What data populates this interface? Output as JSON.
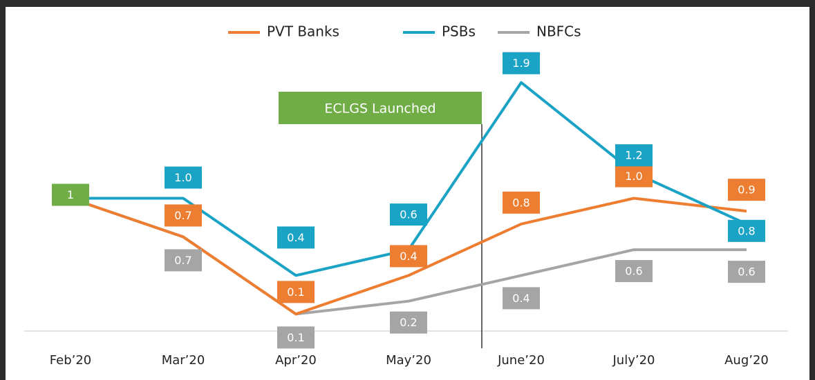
{
  "chart_data": {
    "type": "line",
    "categories": [
      "Feb’20",
      "Mar’20",
      "Apr’20",
      "May’20",
      "June’20",
      "July’20",
      "Aug’20"
    ],
    "series": [
      {
        "name": "PVT Banks",
        "color": "#ed7d31",
        "values": [
          1,
          0.7,
          0.1,
          0.4,
          0.8,
          1.0,
          0.9
        ],
        "value_labels": [
          "1",
          "0.7",
          "0.1",
          "0.4",
          "0.8",
          "1.0",
          "0.9"
        ]
      },
      {
        "name": "PSBs",
        "color": "#1ba3c6",
        "values": [
          1,
          1.0,
          0.4,
          0.6,
          1.9,
          1.2,
          0.8
        ],
        "value_labels": [
          null,
          "1.0",
          "0.4",
          "0.6",
          "1.9",
          "1.2",
          "0.8"
        ]
      },
      {
        "name": "NBFCs",
        "color": "#a5a5a5",
        "values": [
          1,
          0.7,
          0.1,
          0.2,
          0.4,
          0.6,
          0.6
        ],
        "value_labels": [
          null,
          "0.7",
          "0.1",
          "0.2",
          "0.4",
          "0.6",
          "0.6"
        ]
      }
    ],
    "first_label_color": "#70ad47",
    "annotation": {
      "text": "ECLGS Launched",
      "color": "#70ad47"
    },
    "ylim": [
      0,
      2
    ],
    "legend": "top"
  }
}
